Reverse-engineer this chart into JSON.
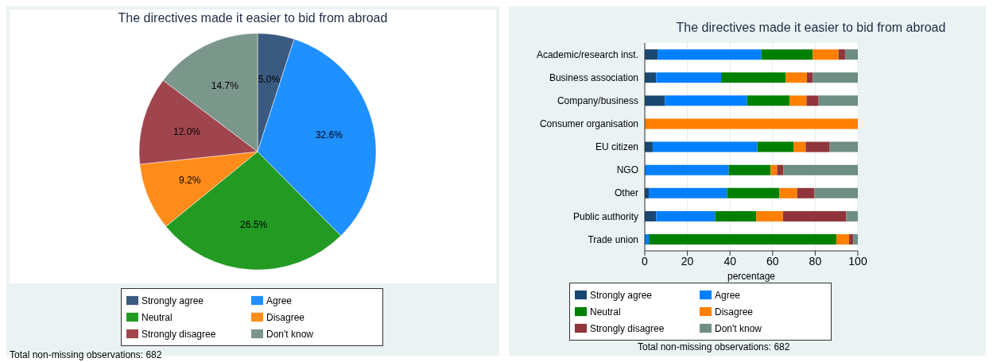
{
  "chart_data": [
    {
      "type": "pie",
      "title": "The directives made it easier to bid from abroad",
      "categories": [
        "Strongly agree",
        "Agree",
        "Neutral",
        "Disagree",
        "Strongly disagree",
        "Don't know"
      ],
      "values": [
        5.0,
        32.6,
        26.5,
        9.2,
        12.0,
        14.7
      ],
      "value_labels": [
        "5.0%",
        "32.6%",
        "26.5%",
        "9.2%",
        "12.0%",
        "14.7%"
      ],
      "colors": [
        "#3a5a80",
        "#1e90ff",
        "#239b23",
        "#ff8c1a",
        "#a0454d",
        "#7b968b"
      ],
      "legend": "bottom",
      "annotations": [
        "Total non-missing observations: 682"
      ]
    },
    {
      "type": "bar",
      "orientation": "horizontal",
      "stacked": true,
      "title": "The directives made it easier to bid from abroad",
      "categories": [
        "Academic/research inst.",
        "Business association",
        "Company/business",
        "Consumer organisation",
        "EU citizen",
        "NGO",
        "Other",
        "Public authority",
        "Trade union"
      ],
      "series": [
        {
          "name": "Strongly agree",
          "color": "#1a476f",
          "values": [
            6.0,
            5.4,
            9.5,
            0,
            3.7,
            0,
            1.9,
            5.4,
            0
          ]
        },
        {
          "name": "Agree",
          "color": "#0080ff",
          "values": [
            48.7,
            30.4,
            38.5,
            0,
            49.1,
            39.4,
            36.7,
            27.6,
            1.9
          ]
        },
        {
          "name": "Neutral",
          "color": "#008000",
          "values": [
            24.1,
            30.3,
            20.0,
            0,
            17.0,
            19.7,
            24.6,
            19.3,
            88.0
          ]
        },
        {
          "name": "Disagree",
          "color": "#ff8000",
          "values": [
            12.1,
            10.0,
            7.9,
            100,
            5.7,
            3.0,
            8.3,
            12.6,
            6.0
          ]
        },
        {
          "name": "Strongly disagree",
          "color": "#90353b",
          "values": [
            3.1,
            2.8,
            5.7,
            0,
            11.3,
            3.0,
            8.1,
            29.6,
            2.0
          ]
        },
        {
          "name": "Don't know",
          "color": "#6e8e84",
          "values": [
            6.0,
            21.1,
            18.4,
            0,
            13.2,
            34.9,
            20.4,
            5.5,
            2.1
          ]
        }
      ],
      "xlim": [
        0,
        100
      ],
      "xticks": [
        0,
        20,
        40,
        60,
        80,
        100
      ],
      "xlabel": "percentage",
      "grid": "x",
      "legend": "bottom",
      "annotations": [
        "Total non-missing observations: 682"
      ]
    }
  ]
}
